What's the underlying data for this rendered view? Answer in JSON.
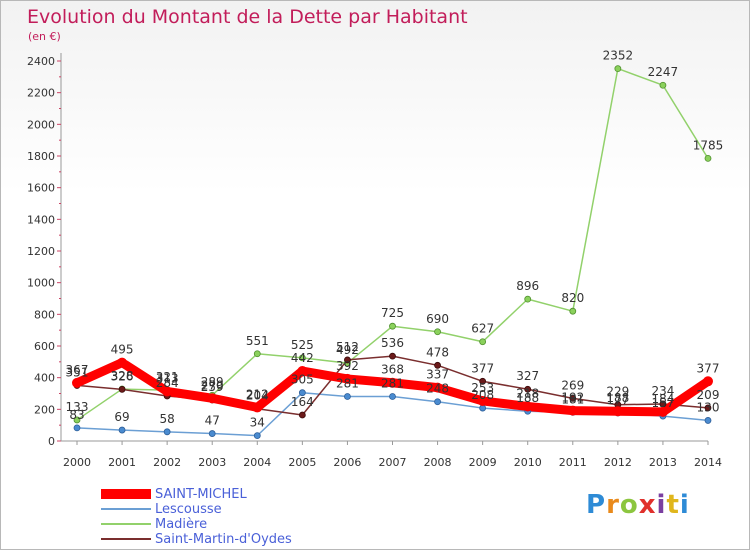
{
  "header": {
    "title": "Evolution du Montant de la Dette par Habitant",
    "subtitle": "(en €)"
  },
  "logo": {
    "text": "Proxiti",
    "colors": [
      "#2e8bd6",
      "#e98a1c",
      "#8cc63f",
      "#e0302c",
      "#7a3fa0",
      "#e0b61c",
      "#2e8bd6"
    ]
  },
  "chart_data": {
    "type": "line",
    "title": "Evolution du Montant de la Dette par Habitant",
    "subtitle": "(en €)",
    "xlabel": "",
    "ylabel": "",
    "x": [
      "2000",
      "2001",
      "2002",
      "2003",
      "2004",
      "2005",
      "2006",
      "2007",
      "2008",
      "2009",
      "2010",
      "2011",
      "2012",
      "2013",
      "2014"
    ],
    "ylim": [
      0,
      2400
    ],
    "yticks": [
      0,
      200,
      400,
      600,
      800,
      1000,
      1200,
      1400,
      1600,
      1800,
      2000,
      2200,
      2400
    ],
    "grid": false,
    "legend_position": "bottom-left",
    "series": [
      {
        "name": "SAINT-MICHEL",
        "color": "#ff0000",
        "values": [
          367,
          495,
          313,
          270,
          212,
          442,
          392,
          368,
          337,
          253,
          218,
          192,
          188,
          184,
          377
        ],
        "labels": [
          "367",
          "495",
          "313",
          "270",
          "212",
          "442",
          "392",
          "368",
          "337",
          "253",
          "218",
          "192",
          "188",
          "184",
          "377"
        ]
      },
      {
        "name": "Lescousse",
        "color": "#6b9fd4",
        "values": [
          83,
          69,
          58,
          47,
          34,
          305,
          281,
          281,
          248,
          208,
          188,
          181,
          177,
          157,
          130
        ],
        "labels": [
          "83",
          "69",
          "58",
          "47",
          "34",
          "305",
          "281",
          "281",
          "248",
          "208",
          "188",
          "181",
          "177",
          "157",
          "130"
        ]
      },
      {
        "name": "Madière",
        "color": "#92d16b",
        "values": [
          133,
          328,
          321,
          289,
          551,
          525,
          492,
          725,
          690,
          627,
          896,
          820,
          2352,
          2247,
          1785
        ],
        "labels": [
          "133",
          "328",
          "321",
          "289",
          "551",
          "525",
          "492",
          "725",
          "690",
          "627",
          "896",
          "820",
          "2352",
          "2247",
          "1785"
        ]
      },
      {
        "name": "Saint-Martin-d'Oydes",
        "color": "#7a2e2e",
        "values": [
          351,
          326,
          284,
          259,
          204,
          164,
          512,
          536,
          478,
          377,
          327,
          269,
          229,
          234,
          209
        ],
        "labels": [
          "351",
          "326",
          "284",
          "259",
          "204",
          "164",
          "512",
          "536",
          "478",
          "377",
          "327",
          "269",
          "229",
          "234",
          "209"
        ],
        "segments": [
          [
            0,
            5
          ],
          [
            5,
            14
          ]
        ]
      }
    ]
  }
}
